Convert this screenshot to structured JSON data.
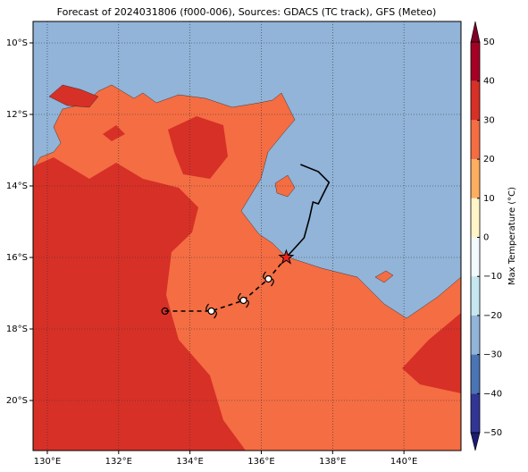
{
  "chart_data": {
    "type": "map",
    "title": "Forecast of 2024031806 (f000-006), Sources: GDACS (TC track), GFS (Meteo)",
    "xlim": [
      129.6,
      141.6
    ],
    "ylim": [
      -21.4,
      -9.4
    ],
    "xticks": [
      {
        "value": 130,
        "label": "130°E"
      },
      {
        "value": 132,
        "label": "132°E"
      },
      {
        "value": 134,
        "label": "134°E"
      },
      {
        "value": 136,
        "label": "136°E"
      },
      {
        "value": 138,
        "label": "138°E"
      },
      {
        "value": 140,
        "label": "140°E"
      }
    ],
    "yticks": [
      {
        "value": -10,
        "label": "10°S"
      },
      {
        "value": -12,
        "label": "12°S"
      },
      {
        "value": -14,
        "label": "14°S"
      },
      {
        "value": -16,
        "label": "16°S"
      },
      {
        "value": -18,
        "label": "18°S"
      },
      {
        "value": -20,
        "label": "20°S"
      }
    ],
    "grid": true,
    "colorbar": {
      "label": "Max Temperature (°C)",
      "lim": [
        -50,
        50
      ],
      "ticks": [
        50,
        40,
        30,
        20,
        10,
        0,
        {
          "value": -10,
          "label": "−10"
        },
        {
          "value": -20,
          "label": "−20"
        },
        {
          "value": -30,
          "label": "−30"
        },
        {
          "value": -40,
          "label": "−40"
        },
        {
          "value": -50,
          "label": "−50"
        }
      ],
      "bands": [
        {
          "from": 40,
          "to": 50,
          "color": "#a50026"
        },
        {
          "from": 30,
          "to": 40,
          "color": "#d73027"
        },
        {
          "from": 20,
          "to": 30,
          "color": "#f46d43"
        },
        {
          "from": 10,
          "to": 20,
          "color": "#fdae61"
        },
        {
          "from": 0,
          "to": 10,
          "color": "#fff5c8"
        },
        {
          "from": -10,
          "to": 0,
          "color": "#f2fafd"
        },
        {
          "from": -20,
          "to": -10,
          "color": "#c6e6f0"
        },
        {
          "from": -30,
          "to": -20,
          "color": "#91b4d8"
        },
        {
          "from": -40,
          "to": -30,
          "color": "#4a74b4"
        },
        {
          "from": -50,
          "to": -40,
          "color": "#313695"
        }
      ],
      "over_color": "#800026",
      "under_color": "#1c1c70"
    },
    "track": {
      "past": {
        "lon": [
          136.7,
          137.2,
          137.35,
          137.45,
          137.6,
          137.9,
          137.6,
          137.1
        ],
        "lat": [
          -16.0,
          -15.45,
          -14.9,
          -14.45,
          -14.5,
          -13.9,
          -13.6,
          -13.4
        ]
      },
      "forecast": {
        "lon": [
          136.7,
          136.2,
          135.5,
          134.6,
          133.3
        ],
        "lat": [
          -16.0,
          -16.6,
          -17.2,
          -17.5,
          -17.5
        ]
      },
      "current": {
        "lon": 136.7,
        "lat": -16.0
      }
    }
  }
}
